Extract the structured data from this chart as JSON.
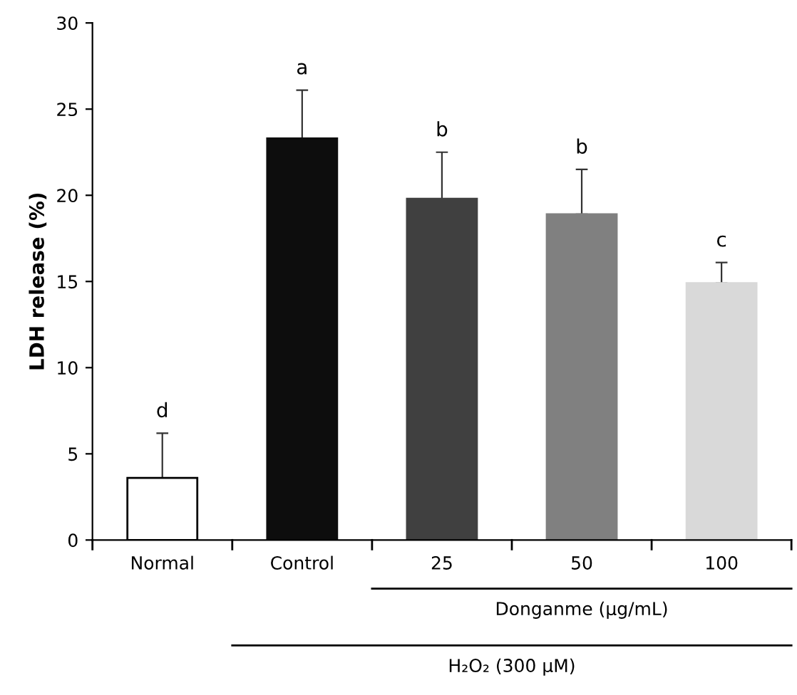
{
  "chart_data": {
    "type": "bar",
    "ylabel": "LDH release (%)",
    "categories": [
      "Normal",
      "Control",
      "25",
      "50",
      "100"
    ],
    "values": [
      3.6,
      23.3,
      19.8,
      18.9,
      14.9
    ],
    "colors": [
      "#ffffff",
      "#0d0d0d",
      "#404040",
      "#808080",
      "#d9d9d9"
    ],
    "errors": [
      [
        3.6,
        6.2
      ],
      [
        23.3,
        26.1
      ],
      [
        19.8,
        22.5
      ],
      [
        18.9,
        21.5
      ],
      [
        14.9,
        16.1
      ]
    ],
    "ylim": [
      0,
      30
    ],
    "yticks": [
      0,
      5,
      10,
      15,
      20,
      25,
      30
    ],
    "grid": false,
    "legend": false,
    "annotations": [
      "d",
      "a",
      "b",
      "b",
      "c",
      "Donganme (μg/mL)",
      "H₂O₂ (300 μM)"
    ]
  }
}
